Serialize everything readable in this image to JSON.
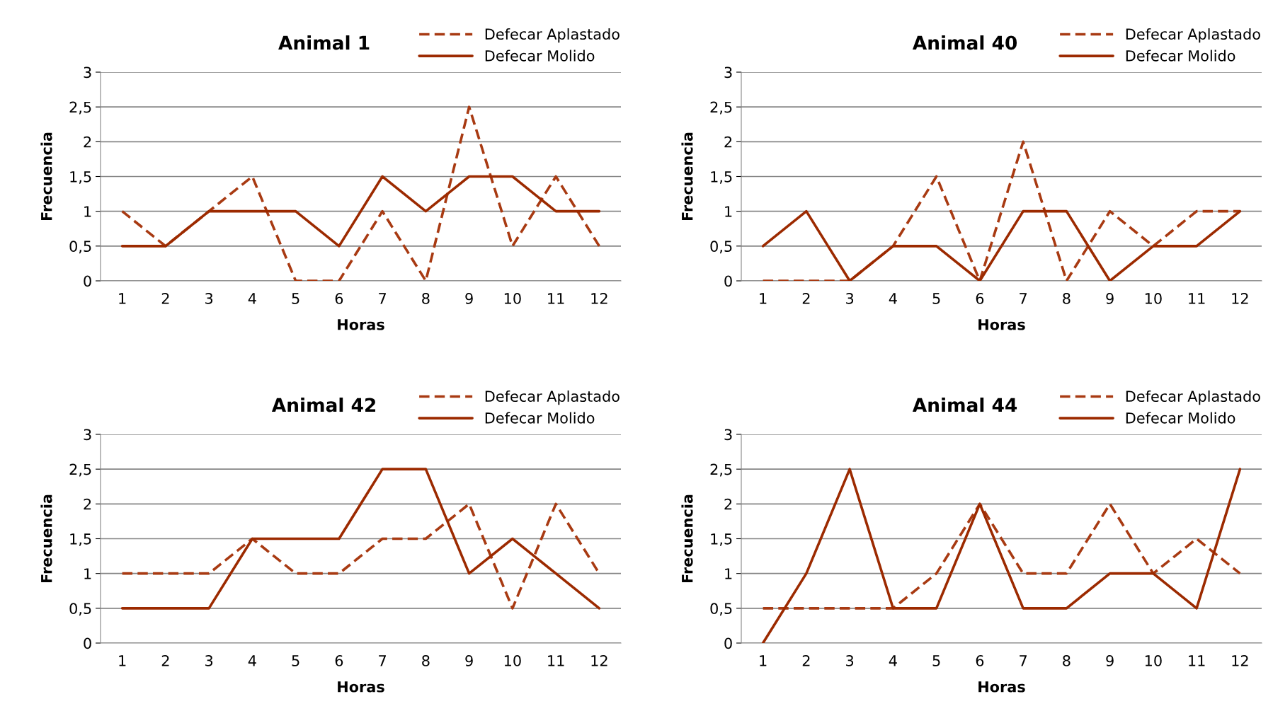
{
  "chart_data": [
    {
      "type": "line",
      "title": "Animal 1",
      "xlabel": "Horas",
      "ylabel": "Frecuencia",
      "categories": [
        "1",
        "2",
        "3",
        "4",
        "5",
        "6",
        "7",
        "8",
        "9",
        "10",
        "11",
        "12"
      ],
      "ylim": [
        0,
        3
      ],
      "yticks": [
        0,
        {
          "value": 0.5,
          "label": "0,5"
        },
        1,
        {
          "value": 1.5,
          "label": "1,5"
        },
        2,
        {
          "value": 2.5,
          "label": "2,5"
        },
        3
      ],
      "grid": "y",
      "legend": "top right",
      "marker": "none",
      "series": [
        {
          "name": "Defecar Aplastado",
          "color": "#a83a12",
          "line_style": "dashed",
          "values": [
            1,
            0.5,
            1,
            1.5,
            0,
            0,
            1,
            0,
            2.5,
            0.5,
            1.5,
            0.5
          ]
        },
        {
          "name": "Defecar Molido",
          "color": "#9c2a00",
          "line_style": "solid",
          "values": [
            0.5,
            0.5,
            1,
            1,
            1,
            0.5,
            1.5,
            1,
            1.5,
            1.5,
            1,
            1
          ]
        }
      ]
    },
    {
      "type": "line",
      "title": "Animal 40",
      "xlabel": "Horas",
      "ylabel": "Frecuencia",
      "categories": [
        "1",
        "2",
        "3",
        "4",
        "5",
        "6",
        "7",
        "8",
        "9",
        "10",
        "11",
        "12"
      ],
      "ylim": [
        0,
        3
      ],
      "yticks": [
        0,
        {
          "value": 0.5,
          "label": "0,5"
        },
        1,
        {
          "value": 1.5,
          "label": "1,5"
        },
        2,
        {
          "value": 2.5,
          "label": "2,5"
        },
        3
      ],
      "grid": "y",
      "legend": "top right",
      "marker": "none",
      "series": [
        {
          "name": "Defecar Aplastado",
          "color": "#a83a12",
          "line_style": "dashed",
          "values": [
            0,
            0,
            0,
            0.5,
            1.5,
            0,
            2,
            0,
            1,
            0.5,
            1,
            1
          ]
        },
        {
          "name": "Defecar Molido",
          "color": "#9c2a00",
          "line_style": "solid",
          "values": [
            0.5,
            1,
            0,
            0.5,
            0.5,
            0,
            1,
            1,
            0,
            0.5,
            0.5,
            1
          ]
        }
      ]
    },
    {
      "type": "line",
      "title": "Animal 42",
      "xlabel": "Horas",
      "ylabel": "Frecuencia",
      "categories": [
        "1",
        "2",
        "3",
        "4",
        "5",
        "6",
        "7",
        "8",
        "9",
        "10",
        "11",
        "12"
      ],
      "ylim": [
        0,
        3
      ],
      "yticks": [
        0,
        {
          "value": 0.5,
          "label": "0,5"
        },
        1,
        {
          "value": 1.5,
          "label": "1,5"
        },
        2,
        {
          "value": 2.5,
          "label": "2,5"
        },
        3
      ],
      "grid": "y",
      "legend": "top right",
      "marker": "none",
      "series": [
        {
          "name": "Defecar Aplastado",
          "color": "#a83a12",
          "line_style": "dashed",
          "values": [
            1,
            1,
            1,
            1.5,
            1,
            1,
            1.5,
            1.5,
            2,
            0.5,
            2,
            1
          ]
        },
        {
          "name": "Defecar Molido",
          "color": "#9c2a00",
          "line_style": "solid",
          "values": [
            0.5,
            0.5,
            0.5,
            1.5,
            1.5,
            1.5,
            2.5,
            2.5,
            1,
            1.5,
            1,
            0.5
          ]
        }
      ]
    },
    {
      "type": "line",
      "title": "Animal 44",
      "xlabel": "Horas",
      "ylabel": "Frecuencia",
      "categories": [
        "1",
        "2",
        "3",
        "4",
        "5",
        "6",
        "7",
        "8",
        "9",
        "10",
        "11",
        "12"
      ],
      "ylim": [
        0,
        3
      ],
      "yticks": [
        0,
        {
          "value": 0.5,
          "label": "0,5"
        },
        1,
        {
          "value": 1.5,
          "label": "1,5"
        },
        2,
        {
          "value": 2.5,
          "label": "2,5"
        },
        3
      ],
      "grid": "y",
      "legend": "top right",
      "marker": "none",
      "series": [
        {
          "name": "Defecar Aplastado",
          "color": "#a83a12",
          "line_style": "dashed",
          "values": [
            0.5,
            0.5,
            0.5,
            0.5,
            1,
            2,
            1,
            1,
            2,
            1,
            1.5,
            1
          ]
        },
        {
          "name": "Defecar Molido",
          "color": "#9c2a00",
          "line_style": "solid",
          "values": [
            0,
            1,
            2.5,
            0.5,
            0.5,
            2,
            0.5,
            0.5,
            1,
            1,
            0.5,
            2.5
          ]
        }
      ]
    }
  ]
}
